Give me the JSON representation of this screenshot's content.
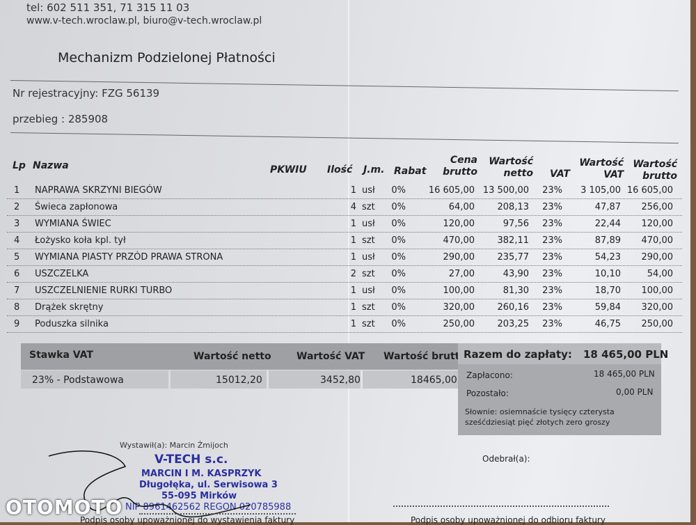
{
  "company": {
    "phone": "tel: 602 511 351, 71 315 11 03",
    "web": "www.v-tech.wroclaw.pl, biuro@v-tech.wroclaw.pl"
  },
  "title": "Mechanizm Podzielonej Płatności",
  "registration": "Nr rejestracyjny: FZG 56139",
  "mileage": "przebieg : 285908",
  "table": {
    "headers": {
      "lp": "Lp",
      "name": "Nazwa",
      "pkwiu": "PKWIU",
      "qty": "Ilość",
      "unit": "J.m.",
      "discount": "Rabat",
      "price": "Cena brutto",
      "net": "Wartość netto",
      "vat": "VAT",
      "vat_value": "Wartość VAT",
      "gross": "Wartość brutto"
    },
    "rows": [
      {
        "lp": "1",
        "name": "NAPRAWA SKRZYNI BIEGÓW",
        "qty": "1",
        "unit": "usł",
        "discount": "0%",
        "price": "16 605,00",
        "net": "13 500,00",
        "vat": "23%",
        "vat_value": "3 105,00",
        "gross": "16 605,00"
      },
      {
        "lp": "2",
        "name": "Świeca zapłonowa",
        "qty": "4",
        "unit": "szt",
        "discount": "0%",
        "price": "64,00",
        "net": "208,13",
        "vat": "23%",
        "vat_value": "47,87",
        "gross": "256,00"
      },
      {
        "lp": "3",
        "name": "WYMIANA ŚWIEC",
        "qty": "1",
        "unit": "usł",
        "discount": "0%",
        "price": "120,00",
        "net": "97,56",
        "vat": "23%",
        "vat_value": "22,44",
        "gross": "120,00"
      },
      {
        "lp": "4",
        "name": "Łożysko koła kpl. tył",
        "qty": "1",
        "unit": "szt",
        "discount": "0%",
        "price": "470,00",
        "net": "382,11",
        "vat": "23%",
        "vat_value": "87,89",
        "gross": "470,00"
      },
      {
        "lp": "5",
        "name": "WYMIANA  PIASTY PRZÓD PRAWA STRONA",
        "qty": "1",
        "unit": "usł",
        "discount": "0%",
        "price": "290,00",
        "net": "235,77",
        "vat": "23%",
        "vat_value": "54,23",
        "gross": "290,00"
      },
      {
        "lp": "6",
        "name": "USZCZELKA",
        "qty": "2",
        "unit": "szt",
        "discount": "0%",
        "price": "27,00",
        "net": "43,90",
        "vat": "23%",
        "vat_value": "10,10",
        "gross": "54,00"
      },
      {
        "lp": "7",
        "name": "USZCZELNIENIE RURKI TURBO",
        "qty": "1",
        "unit": "usł",
        "discount": "0%",
        "price": "100,00",
        "net": "81,30",
        "vat": "23%",
        "vat_value": "18,70",
        "gross": "100,00"
      },
      {
        "lp": "8",
        "name": "Drążek skrętny",
        "qty": "1",
        "unit": "szt",
        "discount": "0%",
        "price": "320,00",
        "net": "260,16",
        "vat": "23%",
        "vat_value": "59,84",
        "gross": "320,00"
      },
      {
        "lp": "9",
        "name": "Poduszka silnika",
        "qty": "1",
        "unit": "szt",
        "discount": "0%",
        "price": "250,00",
        "net": "203,25",
        "vat": "23%",
        "vat_value": "46,75",
        "gross": "250,00"
      }
    ]
  },
  "vat_summary": {
    "headers": [
      "Stawka VAT",
      "Wartość netto",
      "Wartość VAT",
      "Wartość brutto"
    ],
    "row": [
      "23% - Podstawowa",
      "15012,20",
      "3452,80",
      "18465,00"
    ]
  },
  "payment": {
    "total_label": "Razem do zapłaty:",
    "total": "18 465,00 PLN",
    "paid_label": "Zapłacono:",
    "paid": "18 465,00 PLN",
    "remaining_label": "Pozostało:",
    "remaining": "0,00 PLN",
    "words_1": "Słownie: osiemnaście tysięcy czterysta",
    "words_2": "sześćdziesiąt pięć złotych zero groszy"
  },
  "signatures": {
    "issuer_label": "Wystawił(a): Marcin Żmijoch",
    "issuer_caption": "Podpis osoby upoważnionej do wystawienia faktury",
    "receiver_label": "Odebrał(a):",
    "receiver_caption": "Podpis osoby upoważnionej do odbioru faktury"
  },
  "stamp": {
    "l1": "V-TECH s.c.",
    "l2": "MARCIN I M. KASPRZYK",
    "l3": "Długołęka, ul. Serwisowa 3",
    "l4": "55-095 Mirków",
    "l5": "NIP 8961462562  REGON 020785988"
  },
  "watermark": "OTOMOTO"
}
